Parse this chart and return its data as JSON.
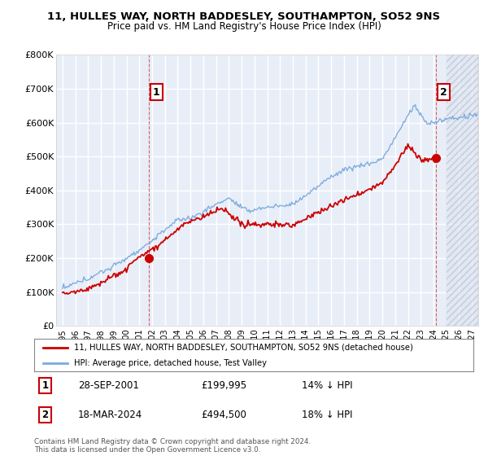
{
  "title": "11, HULLES WAY, NORTH BADDESLEY, SOUTHAMPTON, SO52 9NS",
  "subtitle": "Price paid vs. HM Land Registry's House Price Index (HPI)",
  "legend_label_red": "11, HULLES WAY, NORTH BADDESLEY, SOUTHAMPTON, SO52 9NS (detached house)",
  "legend_label_blue": "HPI: Average price, detached house, Test Valley",
  "annotation1_label": "1",
  "annotation1_date": "28-SEP-2001",
  "annotation1_price": "£199,995",
  "annotation1_hpi": "14% ↓ HPI",
  "annotation2_label": "2",
  "annotation2_date": "18-MAR-2024",
  "annotation2_price": "£494,500",
  "annotation2_hpi": "18% ↓ HPI",
  "footer": "Contains HM Land Registry data © Crown copyright and database right 2024.\nThis data is licensed under the Open Government Licence v3.0.",
  "ylim": [
    0,
    800000
  ],
  "yticks": [
    0,
    100000,
    200000,
    300000,
    400000,
    500000,
    600000,
    700000,
    800000
  ],
  "ytick_labels": [
    "£0",
    "£100K",
    "£200K",
    "£300K",
    "£400K",
    "£500K",
    "£600K",
    "£700K",
    "£800K"
  ],
  "background_color": "#ffffff",
  "plot_bg_color": "#e8eef8",
  "grid_color": "#ffffff",
  "red_color": "#cc0000",
  "blue_color": "#7aaadd",
  "sale1_x": 2001.75,
  "sale1_y": 199995,
  "sale2_x": 2024.21,
  "sale2_y": 494500,
  "xmin": 1994.5,
  "xmax": 2027.5
}
